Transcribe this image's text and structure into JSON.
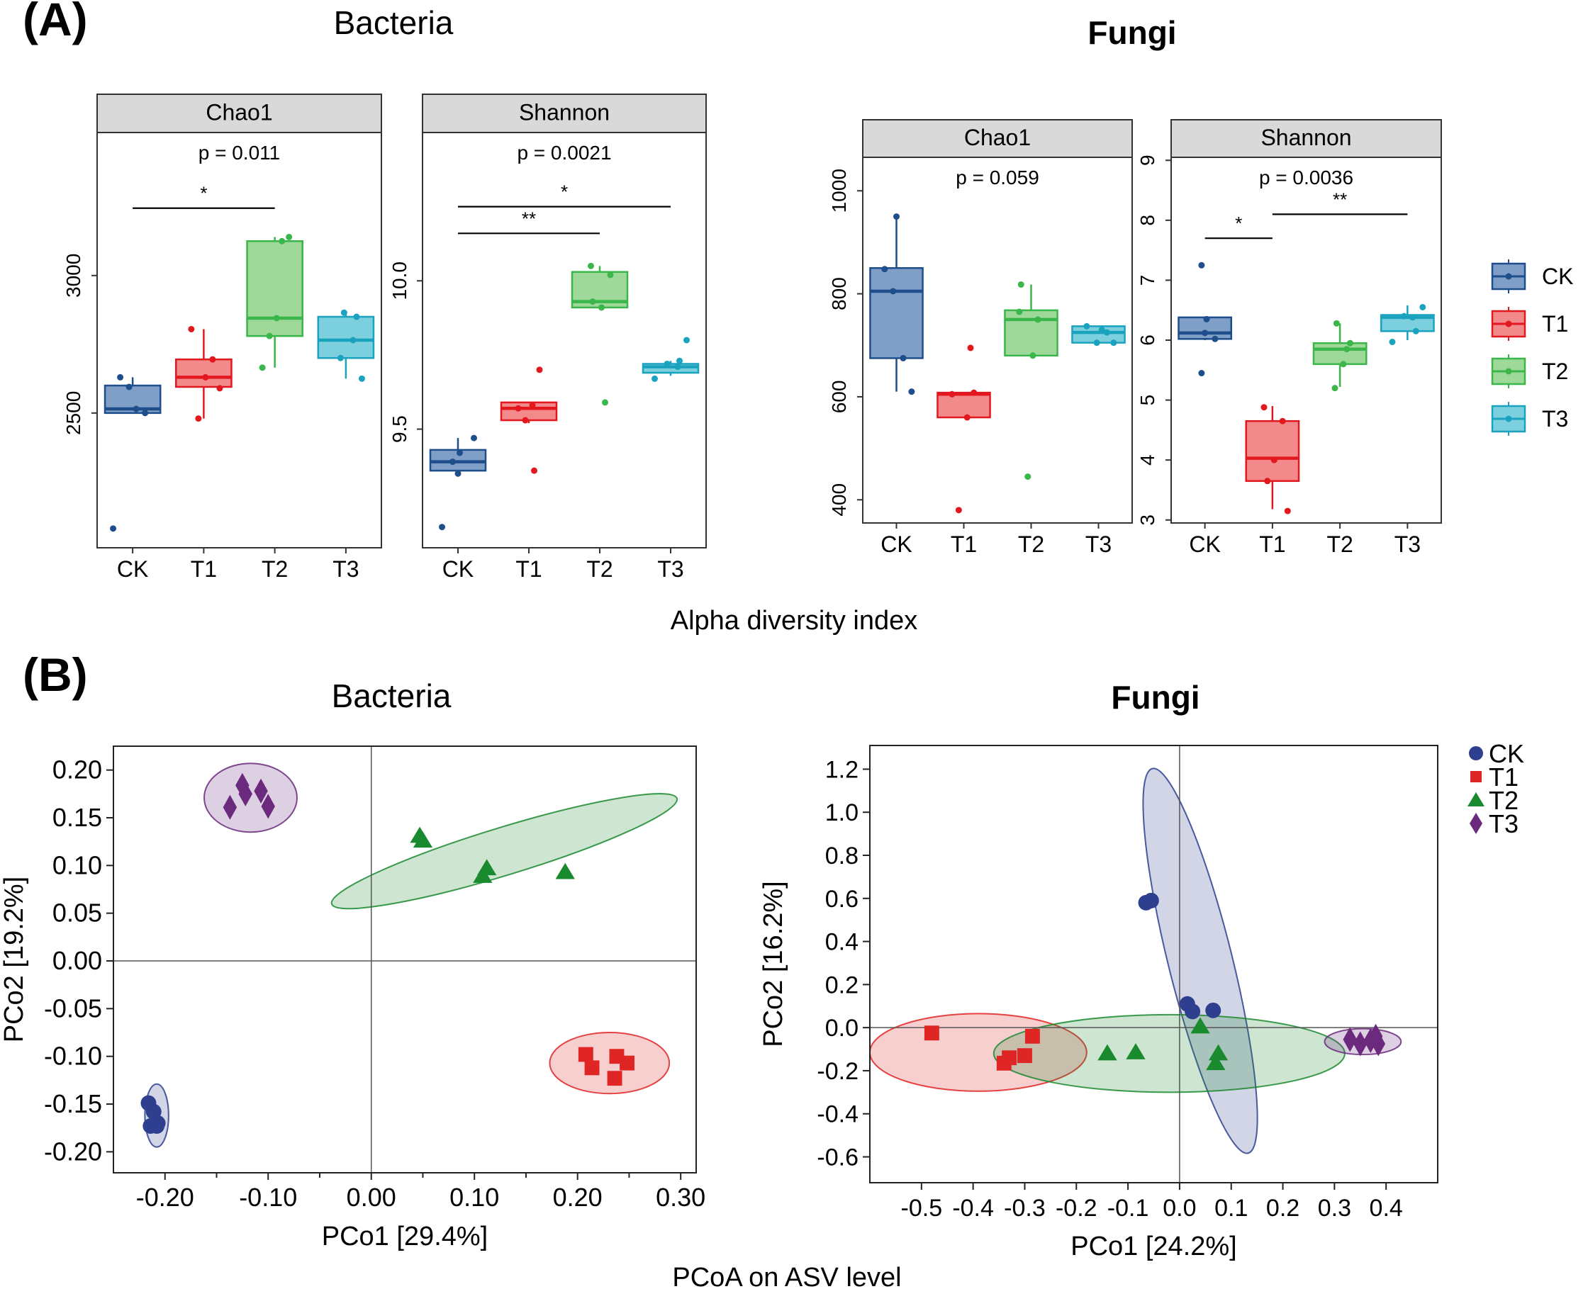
{
  "panel_labels": {
    "a": "(A)",
    "b": "(B)"
  },
  "section_titles": {
    "alpha_bacteria": "Bacteria",
    "alpha_fungi": "Fungi",
    "pcoa_bacteria": "Bacteria",
    "pcoa_fungi": "Fungi"
  },
  "shared_axis_labels": {
    "alpha": "Alpha diversity index",
    "pcoa": "PCoA on ASV level"
  },
  "colors": {
    "CK": "#1f4e8c",
    "CK_fill": "#7f9fc6",
    "T1": "#e3181f",
    "T1_fill": "#f28a8c",
    "T2": "#3ab64a",
    "T2_fill": "#9ed99a",
    "T3": "#1aa3bf",
    "T3_fill": "#7ccfdc",
    "pcoa_CK": "#2e3f8f",
    "pcoa_T1": "#e02525",
    "pcoa_T2": "#1a8a2e",
    "pcoa_T3": "#6b2a7e"
  },
  "legend": {
    "alpha": [
      "CK",
      "T1",
      "T2",
      "T3"
    ],
    "pcoa": [
      "CK",
      "T1",
      "T2",
      "T3"
    ]
  },
  "chart_data": [
    {
      "id": "bac_chao1",
      "type": "box",
      "facet": "Chao1",
      "pvalue": "p = 0.011",
      "categories": [
        "CK",
        "T1",
        "T2",
        "T3"
      ],
      "ylim": [
        2010,
        3520
      ],
      "yticks": [
        2500,
        3000
      ],
      "ytick_labels": [
        "2500",
        "3000"
      ],
      "boxes": [
        {
          "group": "CK",
          "min": 2500,
          "q1": 2500,
          "median": 2515,
          "q3": 2600,
          "max": 2630
        },
        {
          "group": "T1",
          "min": 2480,
          "q1": 2595,
          "median": 2630,
          "q3": 2695,
          "max": 2805
        },
        {
          "group": "T2",
          "min": 2665,
          "q1": 2780,
          "median": 2845,
          "q3": 3125,
          "max": 3140
        },
        {
          "group": "T3",
          "min": 2625,
          "q1": 2700,
          "median": 2765,
          "q3": 2850,
          "max": 2865
        }
      ],
      "points": [
        {
          "group": "CK",
          "dx": -0.35,
          "y": 2630
        },
        {
          "group": "CK",
          "dx": -0.1,
          "y": 2595
        },
        {
          "group": "CK",
          "dx": 0.1,
          "y": 2515
        },
        {
          "group": "CK",
          "dx": 0.35,
          "y": 2500
        },
        {
          "group": "CK",
          "dx": -0.55,
          "y": 2080
        },
        {
          "group": "T1",
          "dx": -0.35,
          "y": 2805
        },
        {
          "group": "T1",
          "dx": 0.05,
          "y": 2630
        },
        {
          "group": "T1",
          "dx": 0.25,
          "y": 2695
        },
        {
          "group": "T1",
          "dx": -0.15,
          "y": 2480
        },
        {
          "group": "T1",
          "dx": 0.45,
          "y": 2590
        },
        {
          "group": "T2",
          "dx": -0.35,
          "y": 2665
        },
        {
          "group": "T2",
          "dx": -0.15,
          "y": 2780
        },
        {
          "group": "T2",
          "dx": 0.2,
          "y": 3125
        },
        {
          "group": "T2",
          "dx": 0.4,
          "y": 3140
        },
        {
          "group": "T2",
          "dx": 0.05,
          "y": 2845
        },
        {
          "group": "T3",
          "dx": -0.05,
          "y": 2865
        },
        {
          "group": "T3",
          "dx": -0.15,
          "y": 2700
        },
        {
          "group": "T3",
          "dx": 0.2,
          "y": 2765
        },
        {
          "group": "T3",
          "dx": 0.45,
          "y": 2625
        },
        {
          "group": "T3",
          "dx": 0.3,
          "y": 2850
        }
      ],
      "brackets": [
        {
          "from": "CK",
          "to": "T2",
          "y": 3245,
          "label": "*"
        }
      ]
    },
    {
      "id": "bac_shannon",
      "type": "box",
      "facet": "Shannon",
      "pvalue": "p = 0.0021",
      "categories": [
        "CK",
        "T1",
        "T2",
        "T3"
      ],
      "ylim": [
        9.1,
        10.5
      ],
      "yticks": [
        9.5,
        10.0
      ],
      "ytick_labels": [
        "9.5",
        "10.0"
      ],
      "boxes": [
        {
          "group": "CK",
          "min": 9.35,
          "q1": 9.36,
          "median": 9.39,
          "q3": 9.43,
          "max": 9.47
        },
        {
          "group": "T1",
          "min": 9.52,
          "q1": 9.53,
          "median": 9.57,
          "q3": 9.59,
          "max": 9.59
        },
        {
          "group": "T2",
          "min": 9.91,
          "q1": 9.91,
          "median": 9.93,
          "q3": 10.03,
          "max": 10.05
        },
        {
          "group": "T3",
          "min": 9.68,
          "q1": 9.69,
          "median": 9.71,
          "q3": 9.72,
          "max": 9.73
        }
      ],
      "points": [
        {
          "group": "CK",
          "dx": 0.05,
          "y": 9.42
        },
        {
          "group": "CK",
          "dx": 0.0,
          "y": 9.35
        },
        {
          "group": "CK",
          "dx": -0.15,
          "y": 9.39
        },
        {
          "group": "CK",
          "dx": 0.45,
          "y": 9.47
        },
        {
          "group": "CK",
          "dx": -0.45,
          "y": 9.17
        },
        {
          "group": "T1",
          "dx": -0.1,
          "y": 9.53
        },
        {
          "group": "T1",
          "dx": 0.1,
          "y": 9.58
        },
        {
          "group": "T1",
          "dx": 0.3,
          "y": 9.7
        },
        {
          "group": "T1",
          "dx": 0.15,
          "y": 9.36
        },
        {
          "group": "T1",
          "dx": -0.3,
          "y": 9.57
        },
        {
          "group": "T2",
          "dx": -0.25,
          "y": 10.05
        },
        {
          "group": "T2",
          "dx": 0.3,
          "y": 10.02
        },
        {
          "group": "T2",
          "dx": 0.05,
          "y": 9.91
        },
        {
          "group": "T2",
          "dx": 0.15,
          "y": 9.59
        },
        {
          "group": "T2",
          "dx": -0.2,
          "y": 9.93
        },
        {
          "group": "T3",
          "dx": -0.45,
          "y": 9.67
        },
        {
          "group": "T3",
          "dx": -0.1,
          "y": 9.72
        },
        {
          "group": "T3",
          "dx": 0.2,
          "y": 9.71
        },
        {
          "group": "T3",
          "dx": 0.45,
          "y": 9.8
        },
        {
          "group": "T3",
          "dx": 0.25,
          "y": 9.73
        }
      ],
      "brackets": [
        {
          "from": "CK",
          "to": "T2",
          "y": 10.16,
          "label": "**"
        },
        {
          "from": "CK",
          "to": "T3",
          "y": 10.25,
          "label": "*"
        }
      ]
    },
    {
      "id": "fun_chao1",
      "type": "box",
      "facet": "Chao1",
      "pvalue": "p = 0.059",
      "categories": [
        "CK",
        "T1",
        "T2",
        "T3"
      ],
      "ylim": [
        355,
        1065
      ],
      "yticks": [
        400,
        600,
        800,
        1000
      ],
      "ytick_labels": [
        "400",
        "600",
        "800",
        "1000"
      ],
      "boxes": [
        {
          "group": "CK",
          "min": 610,
          "q1": 675,
          "median": 805,
          "q3": 850,
          "max": 950
        },
        {
          "group": "T1",
          "min": 560,
          "q1": 560,
          "median": 605,
          "q3": 608,
          "max": 608
        },
        {
          "group": "T2",
          "min": 680,
          "q1": 680,
          "median": 750,
          "q3": 768,
          "max": 818
        },
        {
          "group": "T3",
          "min": 705,
          "q1": 705,
          "median": 725,
          "q3": 737,
          "max": 737
        }
      ],
      "points": [
        {
          "group": "CK",
          "dx": -0.35,
          "y": 848
        },
        {
          "group": "CK",
          "dx": 0.2,
          "y": 675
        },
        {
          "group": "CK",
          "dx": 0.0,
          "y": 950
        },
        {
          "group": "CK",
          "dx": 0.45,
          "y": 610
        },
        {
          "group": "CK",
          "dx": -0.1,
          "y": 805
        },
        {
          "group": "T1",
          "dx": -0.35,
          "y": 605
        },
        {
          "group": "T1",
          "dx": 0.1,
          "y": 560
        },
        {
          "group": "T1",
          "dx": 0.2,
          "y": 695
        },
        {
          "group": "T1",
          "dx": -0.15,
          "y": 380
        },
        {
          "group": "T1",
          "dx": 0.3,
          "y": 608
        },
        {
          "group": "T2",
          "dx": -0.35,
          "y": 765
        },
        {
          "group": "T2",
          "dx": 0.05,
          "y": 680
        },
        {
          "group": "T2",
          "dx": -0.1,
          "y": 445
        },
        {
          "group": "T2",
          "dx": -0.3,
          "y": 818
        },
        {
          "group": "T2",
          "dx": 0.2,
          "y": 750
        },
        {
          "group": "T3",
          "dx": -0.35,
          "y": 737
        },
        {
          "group": "T3",
          "dx": -0.05,
          "y": 705
        },
        {
          "group": "T3",
          "dx": 0.1,
          "y": 730
        },
        {
          "group": "T3",
          "dx": 0.45,
          "y": 705
        },
        {
          "group": "T3",
          "dx": 0.25,
          "y": 725
        }
      ],
      "brackets": []
    },
    {
      "id": "fun_shannon",
      "type": "box",
      "facet": "Shannon",
      "pvalue": "p = 0.0036",
      "categories": [
        "CK",
        "T1",
        "T2",
        "T3"
      ],
      "ylim": [
        2.95,
        9.05
      ],
      "yticks": [
        3,
        4,
        5,
        6,
        7,
        8,
        9
      ],
      "ytick_labels": [
        "3",
        "4",
        "5",
        "6",
        "7",
        "8",
        "9"
      ],
      "boxes": [
        {
          "group": "CK",
          "min": 6.0,
          "q1": 6.02,
          "median": 6.12,
          "q3": 6.38,
          "max": 6.38
        },
        {
          "group": "T1",
          "min": 3.18,
          "q1": 3.65,
          "median": 4.03,
          "q3": 4.65,
          "max": 4.9
        },
        {
          "group": "T2",
          "min": 5.22,
          "q1": 5.6,
          "median": 5.85,
          "q3": 5.95,
          "max": 6.28
        },
        {
          "group": "T3",
          "min": 6.0,
          "q1": 6.15,
          "median": 6.38,
          "q3": 6.42,
          "max": 6.58
        }
      ],
      "points": [
        {
          "group": "CK",
          "dx": -0.1,
          "y": 7.25
        },
        {
          "group": "CK",
          "dx": 0.05,
          "y": 6.35
        },
        {
          "group": "CK",
          "dx": 0.3,
          "y": 6.02
        },
        {
          "group": "CK",
          "dx": -0.1,
          "y": 5.45
        },
        {
          "group": "CK",
          "dx": 0.0,
          "y": 6.12
        },
        {
          "group": "T1",
          "dx": -0.25,
          "y": 4.88
        },
        {
          "group": "T1",
          "dx": 0.3,
          "y": 4.65
        },
        {
          "group": "T1",
          "dx": 0.05,
          "y": 4.0
        },
        {
          "group": "T1",
          "dx": -0.15,
          "y": 3.65
        },
        {
          "group": "T1",
          "dx": 0.45,
          "y": 3.15
        },
        {
          "group": "T2",
          "dx": -0.1,
          "y": 6.28
        },
        {
          "group": "T2",
          "dx": 0.3,
          "y": 5.95
        },
        {
          "group": "T2",
          "dx": 0.1,
          "y": 5.6
        },
        {
          "group": "T2",
          "dx": -0.15,
          "y": 5.2
        },
        {
          "group": "T2",
          "dx": 0.2,
          "y": 5.85
        },
        {
          "group": "T3",
          "dx": -0.45,
          "y": 5.97
        },
        {
          "group": "T3",
          "dx": -0.1,
          "y": 6.4
        },
        {
          "group": "T3",
          "dx": 0.25,
          "y": 6.15
        },
        {
          "group": "T3",
          "dx": 0.45,
          "y": 6.55
        },
        {
          "group": "T3",
          "dx": 0.15,
          "y": 6.38
        }
      ],
      "brackets": [
        {
          "from": "CK",
          "to": "T1",
          "y": 7.7,
          "label": "*"
        },
        {
          "from": "T1",
          "to": "T3",
          "y": 8.1,
          "label": "**"
        }
      ]
    },
    {
      "id": "pcoa_bac",
      "type": "scatter",
      "title": "Bacteria",
      "xlabel": "PCo1 [29.4%]",
      "ylabel": "PCo2 [19.2%]",
      "xlim": [
        -0.25,
        0.315
      ],
      "ylim": [
        -0.222,
        0.225
      ],
      "xticks": [
        -0.2,
        -0.1,
        0.0,
        0.1,
        0.2,
        0.3
      ],
      "xtick_labels": [
        "-0.20",
        "-0.10",
        "0.00",
        "0.10",
        "0.20",
        "0.30"
      ],
      "xminor": [
        -0.15,
        -0.05,
        0.05,
        0.15,
        0.25
      ],
      "yticks": [
        0.2,
        0.15,
        0.1,
        0.05,
        0.0,
        -0.05,
        -0.1,
        -0.15,
        -0.2
      ],
      "ytick_labels": [
        "0.20",
        "0.15",
        "0.10",
        "0.05",
        "0.00",
        "-0.05",
        "-0.10",
        "-0.15",
        "-0.20"
      ],
      "ellipses": [
        {
          "group": "CK",
          "cx": -0.208,
          "cy": -0.162,
          "rx": 0.0115,
          "ry": 0.033,
          "angle": 0
        },
        {
          "group": "T1",
          "cx": 0.231,
          "cy": -0.107,
          "rx": 0.058,
          "ry": 0.032,
          "angle": 0
        },
        {
          "group": "T2",
          "cx": 0.129,
          "cy": 0.115,
          "rx": 0.175,
          "ry": 0.025,
          "angle": -17
        },
        {
          "group": "T3",
          "cx": -0.117,
          "cy": 0.171,
          "rx": 0.045,
          "ry": 0.036,
          "angle": 0
        }
      ],
      "series": [
        {
          "name": "CK",
          "marker": "circle",
          "points": [
            [
              -0.216,
              -0.149
            ],
            [
              -0.211,
              -0.158
            ],
            [
              -0.214,
              -0.173
            ],
            [
              -0.208,
              -0.173
            ],
            [
              -0.207,
              -0.17
            ]
          ]
        },
        {
          "name": "T1",
          "marker": "square",
          "points": [
            [
              0.208,
              -0.098
            ],
            [
              0.214,
              -0.112
            ],
            [
              0.238,
              -0.1
            ],
            [
              0.248,
              -0.107
            ],
            [
              0.236,
              -0.123
            ]
          ]
        },
        {
          "name": "T2",
          "marker": "triangle",
          "points": [
            [
              0.047,
              0.131
            ],
            [
              0.05,
              0.126
            ],
            [
              0.108,
              0.089
            ],
            [
              0.112,
              0.097
            ],
            [
              0.188,
              0.093
            ]
          ]
        },
        {
          "name": "T3",
          "marker": "diamond",
          "points": [
            [
              -0.137,
              0.161
            ],
            [
              -0.125,
              0.184
            ],
            [
              -0.122,
              0.175
            ],
            [
              -0.107,
              0.178
            ],
            [
              -0.1,
              0.162
            ]
          ]
        }
      ]
    },
    {
      "id": "pcoa_fun",
      "type": "scatter",
      "title": "Fungi",
      "xlabel": "PCo1 [24.2%]",
      "ylabel": "PCo2 [16.2%]",
      "xlim": [
        -0.6,
        0.5
      ],
      "ylim": [
        -0.72,
        1.31
      ],
      "xticks": [
        -0.5,
        -0.4,
        -0.3,
        -0.2,
        -0.1,
        0.0,
        0.1,
        0.2,
        0.3,
        0.4
      ],
      "xtick_labels": [
        "-0.5",
        "-0.4",
        "-0.3",
        "-0.2",
        "-0.1",
        "0.0",
        "0.1",
        "0.2",
        "0.3",
        "0.4"
      ],
      "xminor": [],
      "yticks": [
        1.2,
        1.0,
        0.8,
        0.6,
        0.4,
        0.2,
        0.0,
        -0.2,
        -0.4,
        -0.6
      ],
      "ytick_labels": [
        "1.2",
        "1.0",
        "0.8",
        "0.6",
        "0.4",
        "0.2",
        "0.0",
        "-0.2",
        "-0.4",
        "-0.6"
      ],
      "ellipses": [
        {
          "group": "CK",
          "cx": 0.04,
          "cy": 0.31,
          "rx": 0.062,
          "ry": 0.92,
          "angle": -14
        },
        {
          "group": "T1",
          "cx": -0.39,
          "cy": -0.115,
          "rx": 0.21,
          "ry": 0.18,
          "angle": 0
        },
        {
          "group": "T2",
          "cx": -0.02,
          "cy": -0.12,
          "rx": 0.34,
          "ry": 0.18,
          "angle": 0
        },
        {
          "group": "T3",
          "cx": 0.355,
          "cy": -0.065,
          "rx": 0.074,
          "ry": 0.06,
          "angle": 0
        }
      ],
      "series": [
        {
          "name": "CK",
          "marker": "circle",
          "points": [
            [
              -0.065,
              0.58
            ],
            [
              -0.055,
              0.59
            ],
            [
              0.015,
              0.11
            ],
            [
              0.025,
              0.075
            ],
            [
              0.065,
              0.08
            ]
          ]
        },
        {
          "name": "T1",
          "marker": "square",
          "points": [
            [
              -0.48,
              -0.025
            ],
            [
              -0.34,
              -0.165
            ],
            [
              -0.33,
              -0.14
            ],
            [
              -0.3,
              -0.13
            ],
            [
              -0.285,
              -0.04
            ]
          ]
        },
        {
          "name": "T2",
          "marker": "triangle",
          "points": [
            [
              -0.14,
              -0.12
            ],
            [
              -0.085,
              -0.115
            ],
            [
              0.04,
              0.005
            ],
            [
              0.07,
              -0.165
            ],
            [
              0.075,
              -0.12
            ]
          ]
        },
        {
          "name": "T3",
          "marker": "diamond",
          "points": [
            [
              0.33,
              -0.055
            ],
            [
              0.35,
              -0.075
            ],
            [
              0.37,
              -0.06
            ],
            [
              0.38,
              -0.04
            ],
            [
              0.385,
              -0.075
            ]
          ]
        }
      ]
    }
  ]
}
